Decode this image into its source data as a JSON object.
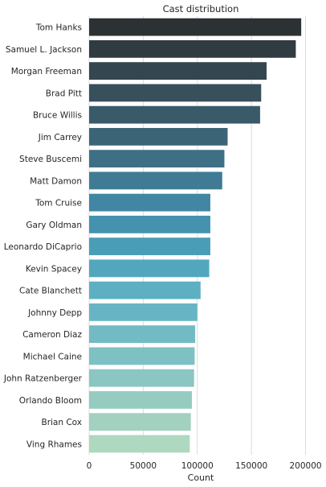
{
  "chart_data": {
    "type": "bar",
    "orientation": "horizontal",
    "title": "Cast distribution",
    "xlabel": "Count",
    "ylabel": "",
    "xlim": [
      0,
      210000
    ],
    "xticks": [
      0,
      50000,
      100000,
      150000,
      200000
    ],
    "xtick_labels": [
      "0",
      "50000",
      "100000",
      "150000",
      "200000"
    ],
    "grid": "vertical",
    "categories": [
      "Tom Hanks",
      "Samuel L. Jackson",
      "Morgan Freeman",
      "Brad Pitt",
      "Bruce Willis",
      "Jim Carrey",
      "Steve Buscemi",
      "Matt Damon",
      "Tom Cruise",
      "Gary Oldman",
      "Leonardo DiCaprio",
      "Kevin Spacey",
      "Cate Blanchett",
      "Johnny Depp",
      "Cameron Diaz",
      "Michael Caine",
      "John Ratzenberger",
      "Orlando Bloom",
      "Brian Cox",
      "Ving Rhames"
    ],
    "values": [
      196000,
      191000,
      164000,
      159000,
      158000,
      128000,
      125000,
      123000,
      112000,
      112000,
      112000,
      111000,
      103000,
      100000,
      98000,
      97500,
      97000,
      95000,
      94000,
      93000
    ],
    "colors": [
      "#2c3134",
      "#303c42",
      "#34464f",
      "#37505c",
      "#395a69",
      "#3b6577",
      "#3d7085",
      "#3f7b94",
      "#4186a3",
      "#4592ae",
      "#4a9db7",
      "#52a7bf",
      "#5cb0c2",
      "#67b5c4",
      "#73bbc4",
      "#7ec1c3",
      "#8ac6c2",
      "#96ccc0",
      "#a2d1bf",
      "#aed8bf"
    ]
  }
}
